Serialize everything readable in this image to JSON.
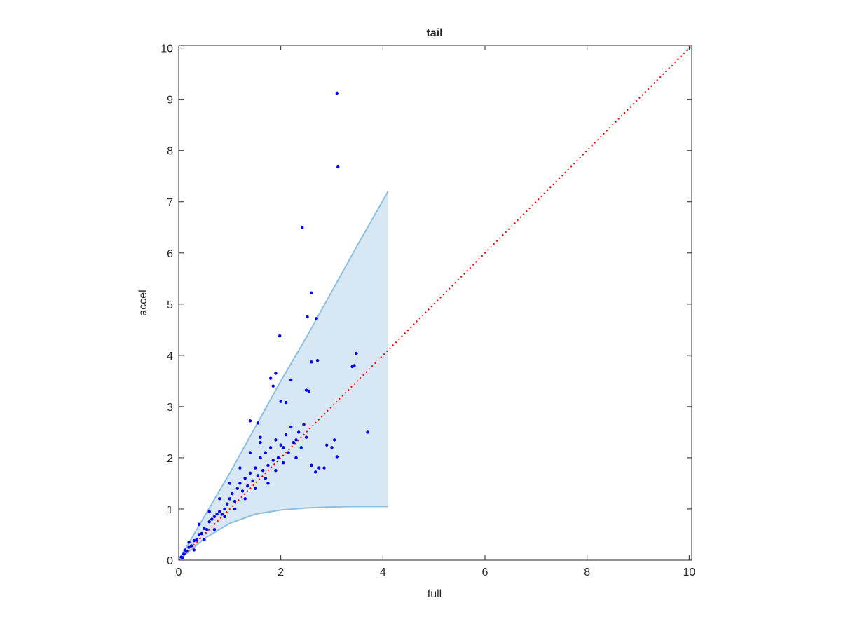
{
  "chart_data": {
    "type": "scatter",
    "title": "tail",
    "x_label": "full",
    "y_label": "accel",
    "xlim": [
      0,
      10.05
    ],
    "ylim": [
      0,
      10.05
    ],
    "xticks": [
      0,
      2,
      4,
      6,
      8,
      10
    ],
    "yticks": [
      0,
      1,
      2,
      3,
      4,
      5,
      6,
      7,
      8,
      9,
      10
    ],
    "grid": false,
    "band": {
      "color": "#8dbfe0",
      "fill": "#d7e8f4",
      "x": [
        0,
        0.5,
        1,
        1.5,
        2,
        2.5,
        3,
        3.5,
        4.1
      ],
      "upper": [
        0,
        0.85,
        1.7,
        2.6,
        3.5,
        4.35,
        5.25,
        6.15,
        7.2
      ],
      "lower": [
        0,
        0.42,
        0.72,
        0.9,
        0.98,
        1.02,
        1.04,
        1.05,
        1.05
      ]
    },
    "reference_line": {
      "color": "#ff0000",
      "style": "dotted",
      "x": [
        0,
        10.05
      ],
      "y": [
        0,
        10.05
      ]
    },
    "points": {
      "color": "#0000ff",
      "x": [
        3.1,
        3.12,
        2.42,
        2.6,
        1.98,
        2.52,
        2.7,
        3.48,
        3.4,
        3.44,
        2.72,
        2.6,
        1.9,
        1.8,
        1.85,
        2.2,
        2.5,
        2.55,
        2.1,
        2.0,
        3.7,
        3.05,
        3.0,
        3.1,
        2.9,
        2.75,
        2.68,
        2.85,
        2.6,
        1.55,
        1.4,
        1.6,
        0.05,
        0.1,
        0.15,
        0.2,
        0.25,
        0.3,
        0.35,
        0.4,
        0.45,
        0.5,
        0.55,
        0.6,
        0.65,
        0.7,
        0.75,
        0.8,
        0.85,
        0.9,
        0.95,
        1.0,
        1.05,
        1.1,
        1.15,
        1.2,
        1.25,
        1.3,
        1.35,
        1.4,
        1.45,
        1.5,
        1.55,
        1.6,
        1.65,
        1.7,
        1.75,
        1.8,
        1.85,
        1.9,
        1.95,
        2.0,
        2.05,
        2.1,
        2.15,
        2.2,
        2.25,
        2.3,
        2.35,
        2.4,
        2.45,
        2.5,
        0.3,
        0.5,
        0.7,
        0.9,
        1.1,
        1.3,
        1.5,
        1.7,
        0.4,
        0.6,
        0.8,
        1.0,
        1.2,
        1.4,
        1.6,
        0.2,
        0.12,
        0.08,
        1.75,
        1.9,
        2.05,
        2.3
      ],
      "y": [
        9.12,
        7.68,
        6.5,
        5.22,
        4.38,
        4.75,
        4.72,
        4.04,
        3.78,
        3.8,
        3.9,
        3.87,
        3.65,
        3.55,
        3.4,
        3.52,
        3.32,
        3.3,
        3.08,
        3.1,
        2.5,
        2.35,
        2.2,
        2.02,
        2.25,
        1.8,
        1.72,
        1.8,
        1.85,
        2.68,
        2.72,
        2.4,
        0.06,
        0.12,
        0.17,
        0.25,
        0.28,
        0.38,
        0.4,
        0.5,
        0.52,
        0.62,
        0.6,
        0.75,
        0.8,
        0.85,
        0.9,
        0.95,
        0.9,
        1.0,
        1.1,
        1.2,
        1.3,
        1.15,
        1.4,
        1.5,
        1.35,
        1.6,
        1.45,
        1.7,
        1.55,
        1.8,
        1.65,
        2.0,
        1.75,
        2.1,
        1.85,
        2.2,
        1.95,
        2.35,
        2.0,
        2.25,
        1.9,
        2.45,
        2.1,
        2.6,
        2.3,
        2.0,
        2.5,
        2.2,
        2.65,
        2.4,
        0.2,
        0.4,
        0.6,
        0.85,
        1.0,
        1.2,
        1.4,
        1.6,
        0.7,
        0.95,
        1.2,
        1.5,
        1.8,
        2.1,
        2.3,
        0.35,
        0.2,
        0.05,
        1.5,
        1.75,
        2.2,
        2.35
      ]
    }
  }
}
